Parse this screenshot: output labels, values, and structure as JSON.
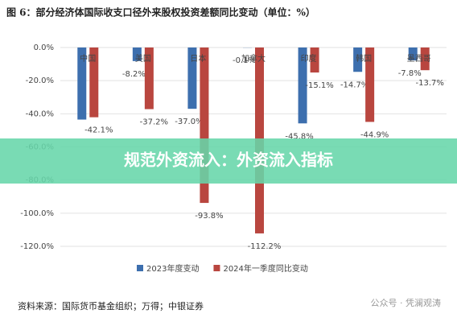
{
  "chart_data": {
    "type": "bar",
    "title": "图 6：部分经济体国际收支口径外来股权投资差额同比变动（单位：%）",
    "categories": [
      "中国",
      "美国",
      "日本",
      "加拿大",
      "印度",
      "韩国",
      "墨西哥"
    ],
    "series": [
      {
        "name": "2023年度变动",
        "color": "#3d6fae",
        "values": [
          -43.5,
          -8.2,
          -37.0,
          -0.1,
          -45.8,
          -14.7,
          -7.8
        ],
        "value_labels": [
          null,
          "-8.2%",
          "-37.0%",
          "-0.1%",
          "-45.8%",
          "-14.7%",
          "-7.8%"
        ]
      },
      {
        "name": "2024年一季度同比变动",
        "color": "#b9463f",
        "values": [
          -42.1,
          -37.2,
          -93.8,
          -112.2,
          -15.1,
          -44.9,
          -13.7
        ],
        "value_labels": [
          "-42.1%",
          "-37.2%",
          "-93.8%",
          "-112.2%",
          "-15.1%",
          "-44.9%",
          "-13.7%"
        ]
      }
    ],
    "ylim": [
      -120,
      0
    ],
    "yticks": [
      {
        "value": 0,
        "label": "0.0%"
      },
      {
        "value": -20,
        "label": "-20.0%"
      },
      {
        "value": -40,
        "label": "-40.0%"
      },
      {
        "value": -60,
        "label": "-60.0%"
      },
      {
        "value": -80,
        "label": "-80.0%"
      },
      {
        "value": -100,
        "label": "-100.0%"
      },
      {
        "value": -120,
        "label": "-120.0%"
      }
    ],
    "grid": true,
    "source": "资料来源：国际货币基金组织；万得；中银证券",
    "watermark": "公众号 · 凭澜观涛",
    "overlay_text": "规范外资流入：外资流入指标"
  }
}
